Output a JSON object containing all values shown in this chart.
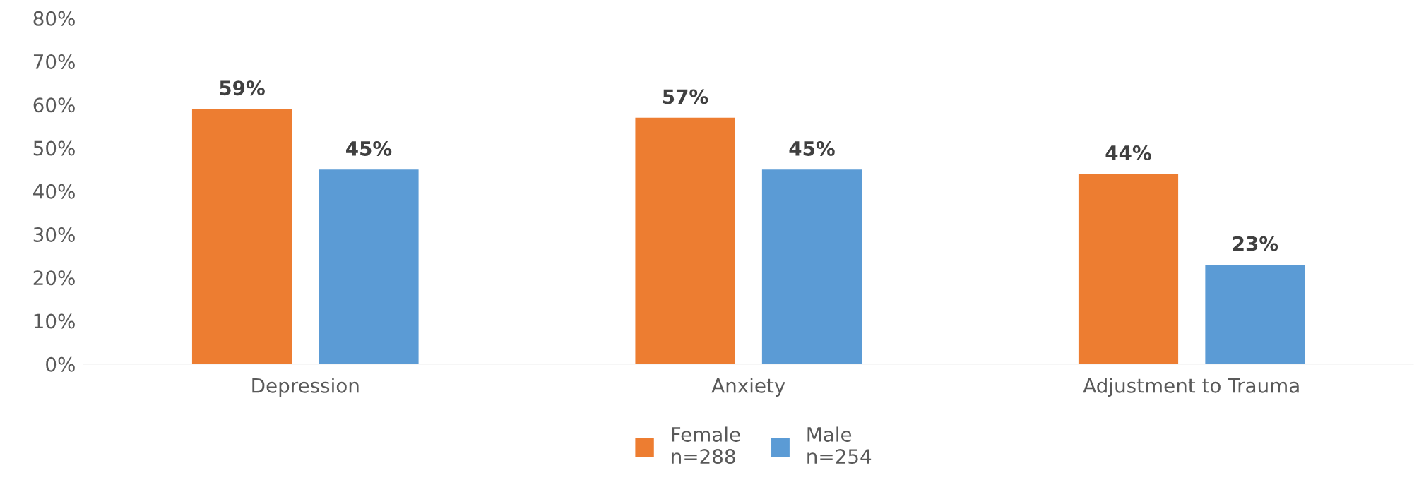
{
  "chart_data": {
    "type": "bar",
    "categories": [
      "Depression",
      "Anxiety",
      "Adjustment to Trauma"
    ],
    "series": [
      {
        "name": "Female\nn=288",
        "color": "#ed7d31",
        "values": [
          59,
          57,
          44
        ],
        "value_labels": [
          "59%",
          "57%",
          "44%"
        ]
      },
      {
        "name": "Male\nn=254",
        "color": "#5b9bd5",
        "values": [
          45,
          45,
          23
        ],
        "value_labels": [
          "45%",
          "45%",
          "23%"
        ]
      }
    ],
    "ylim": [
      0,
      80
    ],
    "yticks": [
      {
        "value": 0,
        "label": "0%"
      },
      {
        "value": 10,
        "label": "10%"
      },
      {
        "value": 20,
        "label": "20%"
      },
      {
        "value": 30,
        "label": "30%"
      },
      {
        "value": 40,
        "label": "40%"
      },
      {
        "value": 50,
        "label": "50%"
      },
      {
        "value": 60,
        "label": "60%"
      },
      {
        "value": 70,
        "label": "70%"
      },
      {
        "value": 80,
        "label": "80%"
      }
    ],
    "legend": "bottom"
  }
}
